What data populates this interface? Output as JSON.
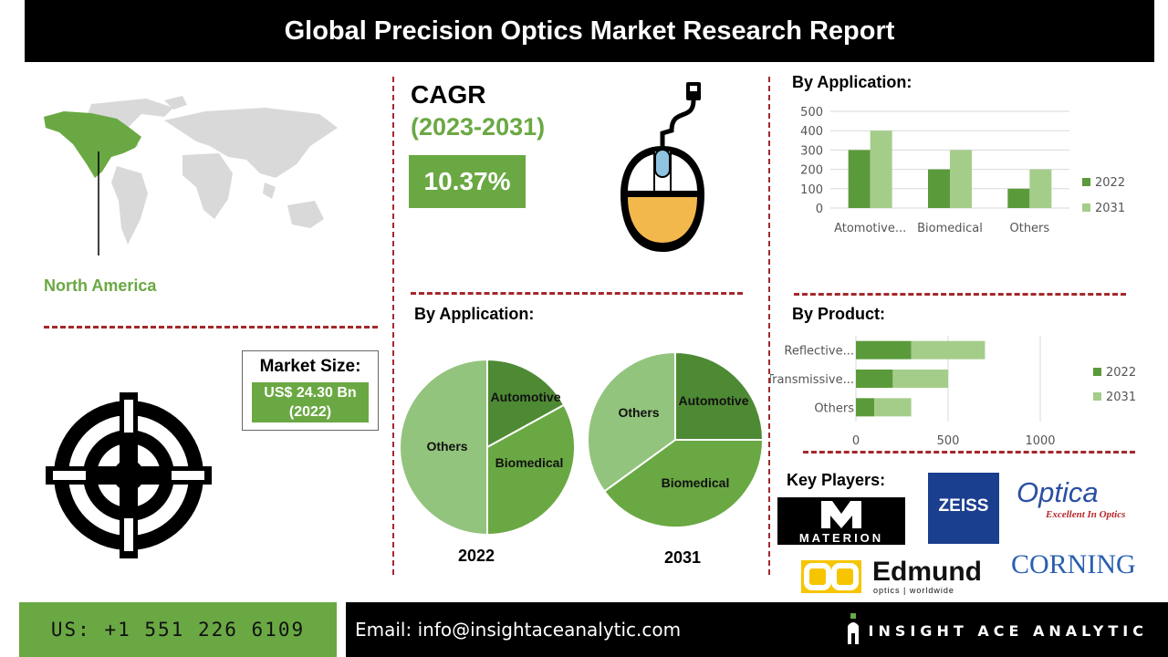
{
  "title": "Global Precision Optics Market Research Report",
  "region": {
    "label": "North America"
  },
  "cagr": {
    "label": "CAGR",
    "years": "(2023-2031)",
    "value": "10.37%"
  },
  "market_size": {
    "title": "Market Size:",
    "value_line1": "US$ 24.30 Bn",
    "value_line2": "(2022)"
  },
  "key_players": {
    "title": "Key Players:",
    "logos": [
      "MATERION",
      "ZEISS",
      "Optica",
      "Excellent In Optics",
      "Edmund",
      "optics | worldwide",
      "CORNING"
    ]
  },
  "colors": {
    "accent_green": "#6aa843",
    "dark_green": "#5b9a3a",
    "light_green": "#a4cd8a",
    "divider_red": "#a3282b",
    "mouse_yellow": "#f2b84b",
    "mouse_blue": "#8fc3e0"
  },
  "icons": [
    "world-map-icon",
    "computer-mouse-icon",
    "crosshair-target-icon"
  ],
  "footer": {
    "phone": "US: +1 551 226 6109",
    "email": "Email: info@insightaceanalytic.com",
    "brand": "INSIGHT ACE ANALYTIC"
  },
  "chart_data": [
    {
      "type": "bar",
      "title": "By Application:",
      "categories": [
        "Atomotive...",
        "Biomedical",
        "Others"
      ],
      "series": [
        {
          "name": "2022",
          "values": [
            300,
            200,
            100
          ]
        },
        {
          "name": "2031",
          "values": [
            400,
            300,
            200
          ]
        }
      ],
      "ylim": [
        0,
        500
      ],
      "yticks": [
        "0",
        "100",
        "200",
        "300",
        "400",
        "500"
      ],
      "grid": true,
      "legend": "right"
    },
    {
      "type": "pie",
      "title": "By Application:",
      "pies": [
        {
          "label": "2022",
          "slices": [
            {
              "name": "Automotive",
              "value": 17
            },
            {
              "name": "Biomedical",
              "value": 33
            },
            {
              "name": "Others",
              "value": 50
            }
          ]
        },
        {
          "label": "2031",
          "slices": [
            {
              "name": "Automotive",
              "value": 25
            },
            {
              "name": "Biomedical",
              "value": 40
            },
            {
              "name": "Others",
              "value": 35
            }
          ]
        }
      ]
    },
    {
      "type": "bar",
      "orientation": "horizontal",
      "stacked": true,
      "title": "By Product:",
      "categories": [
        "Reflective...",
        "Transmissive...",
        "Others"
      ],
      "series": [
        {
          "name": "2022",
          "values": [
            300,
            200,
            100
          ]
        },
        {
          "name": "2031",
          "values": [
            400,
            300,
            200
          ]
        }
      ],
      "xlim": [
        0,
        1000
      ],
      "xticks": [
        "0",
        "500",
        "1000"
      ],
      "grid": true,
      "legend": "right"
    }
  ]
}
